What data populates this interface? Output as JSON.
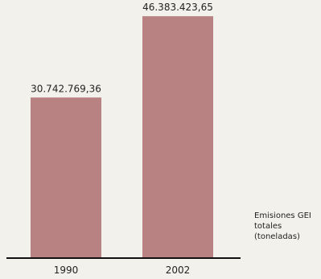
{
  "chart_data": {
    "type": "bar",
    "categories": [
      "1990",
      "2002"
    ],
    "values": [
      30742769.36,
      46383423.65
    ],
    "value_labels": [
      "30.742.769,36",
      "46.383.423,65"
    ],
    "title": "",
    "xlabel": "",
    "ylabel": "",
    "ylim": [
      0,
      49500000
    ],
    "grid": false,
    "legend": {
      "placement": "right",
      "lines": [
        "Emisiones GEI",
        "totales",
        "(toneladas)"
      ]
    },
    "colors": {
      "bar": "#b88283",
      "axis": "#111111",
      "background": "#f3f1eb"
    }
  }
}
